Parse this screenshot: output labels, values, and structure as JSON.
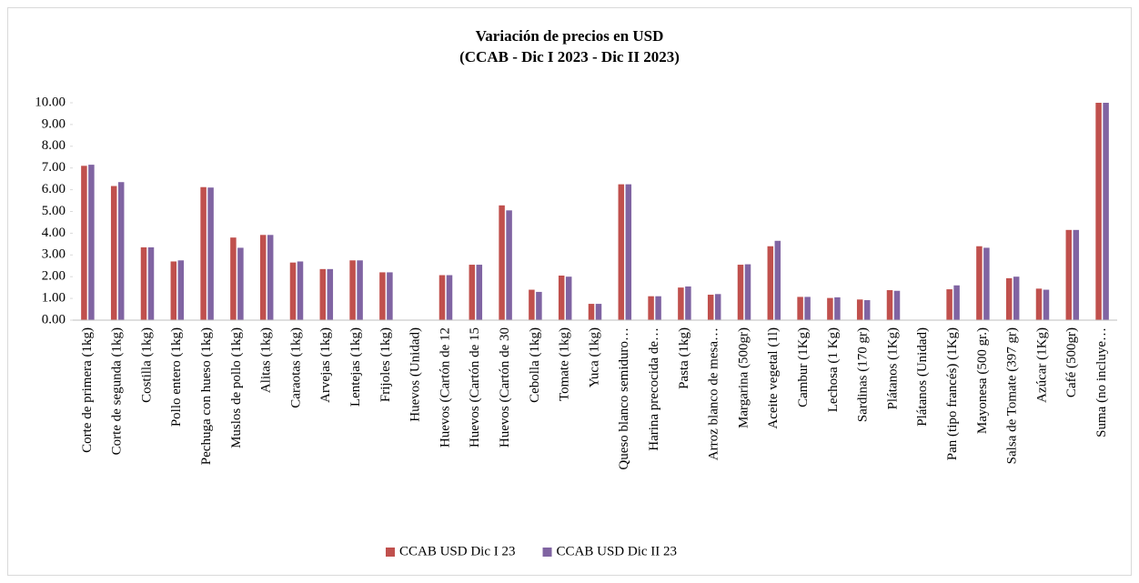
{
  "chart_data": {
    "type": "bar",
    "title": "Variación de precios en USD",
    "subtitle": "(CCAB - Dic I 2023 - Dic II 2023)",
    "categories": [
      "Corte de primera (1kg)",
      "Corte de segunda (1kg)",
      "Costilla (1kg)",
      "Pollo entero (1kg)",
      "Pechuga con hueso (1kg)",
      "Muslos de pollo (1kg)",
      "Alitas (1kg)",
      "Caraotas (1kg)",
      "Arvejas (1kg)",
      "Lentejas (1kg)",
      "Frijoles (1kg)",
      "Huevos (Unidad)",
      "Huevos (Cartón de 12",
      "Huevos (Cartón de 15",
      "Huevos (Cartón de 30",
      "Cebolla (1kg)",
      "Tomate (1kg)",
      "Yuca (1kg)",
      "Queso blanco semiduro…",
      "Harina precocida de…",
      "Pasta (1kg)",
      "Arroz blanco de mesa…",
      "Margarina (500gr)",
      "Aceite vegetal (1l)",
      "Cambur (1Kg)",
      "Lechosa (1 Kg)",
      "Sardinas (170 gr)",
      "Plátanos (1Kg)",
      "Plátanos (Unidad)",
      "Pan (tipo francés) (1Kg)",
      "Mayonesa (500 gr.)",
      "Salsa de Tomate (397 gr)",
      "Azúcar (1Kg)",
      "Café (500gr)",
      "Suma (no incluye…"
    ],
    "series": [
      {
        "name": "CCAB USD Dic I 23",
        "color": "#c0504d",
        "values": [
          7.1,
          6.17,
          3.35,
          2.7,
          6.12,
          3.8,
          3.92,
          2.65,
          2.35,
          2.75,
          2.2,
          null,
          2.07,
          2.55,
          5.28,
          1.4,
          2.05,
          0.75,
          6.25,
          1.1,
          1.5,
          1.17,
          2.55,
          3.4,
          1.07,
          1.02,
          0.95,
          1.38,
          null,
          1.42,
          3.4,
          1.93,
          1.45,
          4.15,
          10
        ]
      },
      {
        "name": "CCAB USD Dic II 23",
        "color": "#8064a2",
        "values": [
          7.15,
          6.35,
          3.35,
          2.75,
          6.1,
          3.33,
          3.92,
          2.7,
          2.35,
          2.75,
          2.2,
          null,
          2.07,
          2.55,
          5.05,
          1.3,
          2.0,
          0.75,
          6.25,
          1.1,
          1.55,
          1.2,
          2.57,
          3.65,
          1.07,
          1.05,
          0.92,
          1.35,
          null,
          1.6,
          3.33,
          2.0,
          1.4,
          4.15,
          10
        ]
      }
    ],
    "ylim": [
      0,
      10
    ],
    "yticks": [
      {
        "value": 0,
        "label": "0.00"
      },
      {
        "value": 1,
        "label": "1.00"
      },
      {
        "value": 2,
        "label": "2.00"
      },
      {
        "value": 3,
        "label": "3.00"
      },
      {
        "value": 4,
        "label": "4.00"
      },
      {
        "value": 5,
        "label": "5.00"
      },
      {
        "value": 6,
        "label": "6.00"
      },
      {
        "value": 7,
        "label": "7.00"
      },
      {
        "value": 8,
        "label": "8.00"
      },
      {
        "value": 9,
        "label": "9.00"
      },
      {
        "value": 10,
        "label": "10.00"
      }
    ],
    "grid": false,
    "legend": "bottom"
  }
}
